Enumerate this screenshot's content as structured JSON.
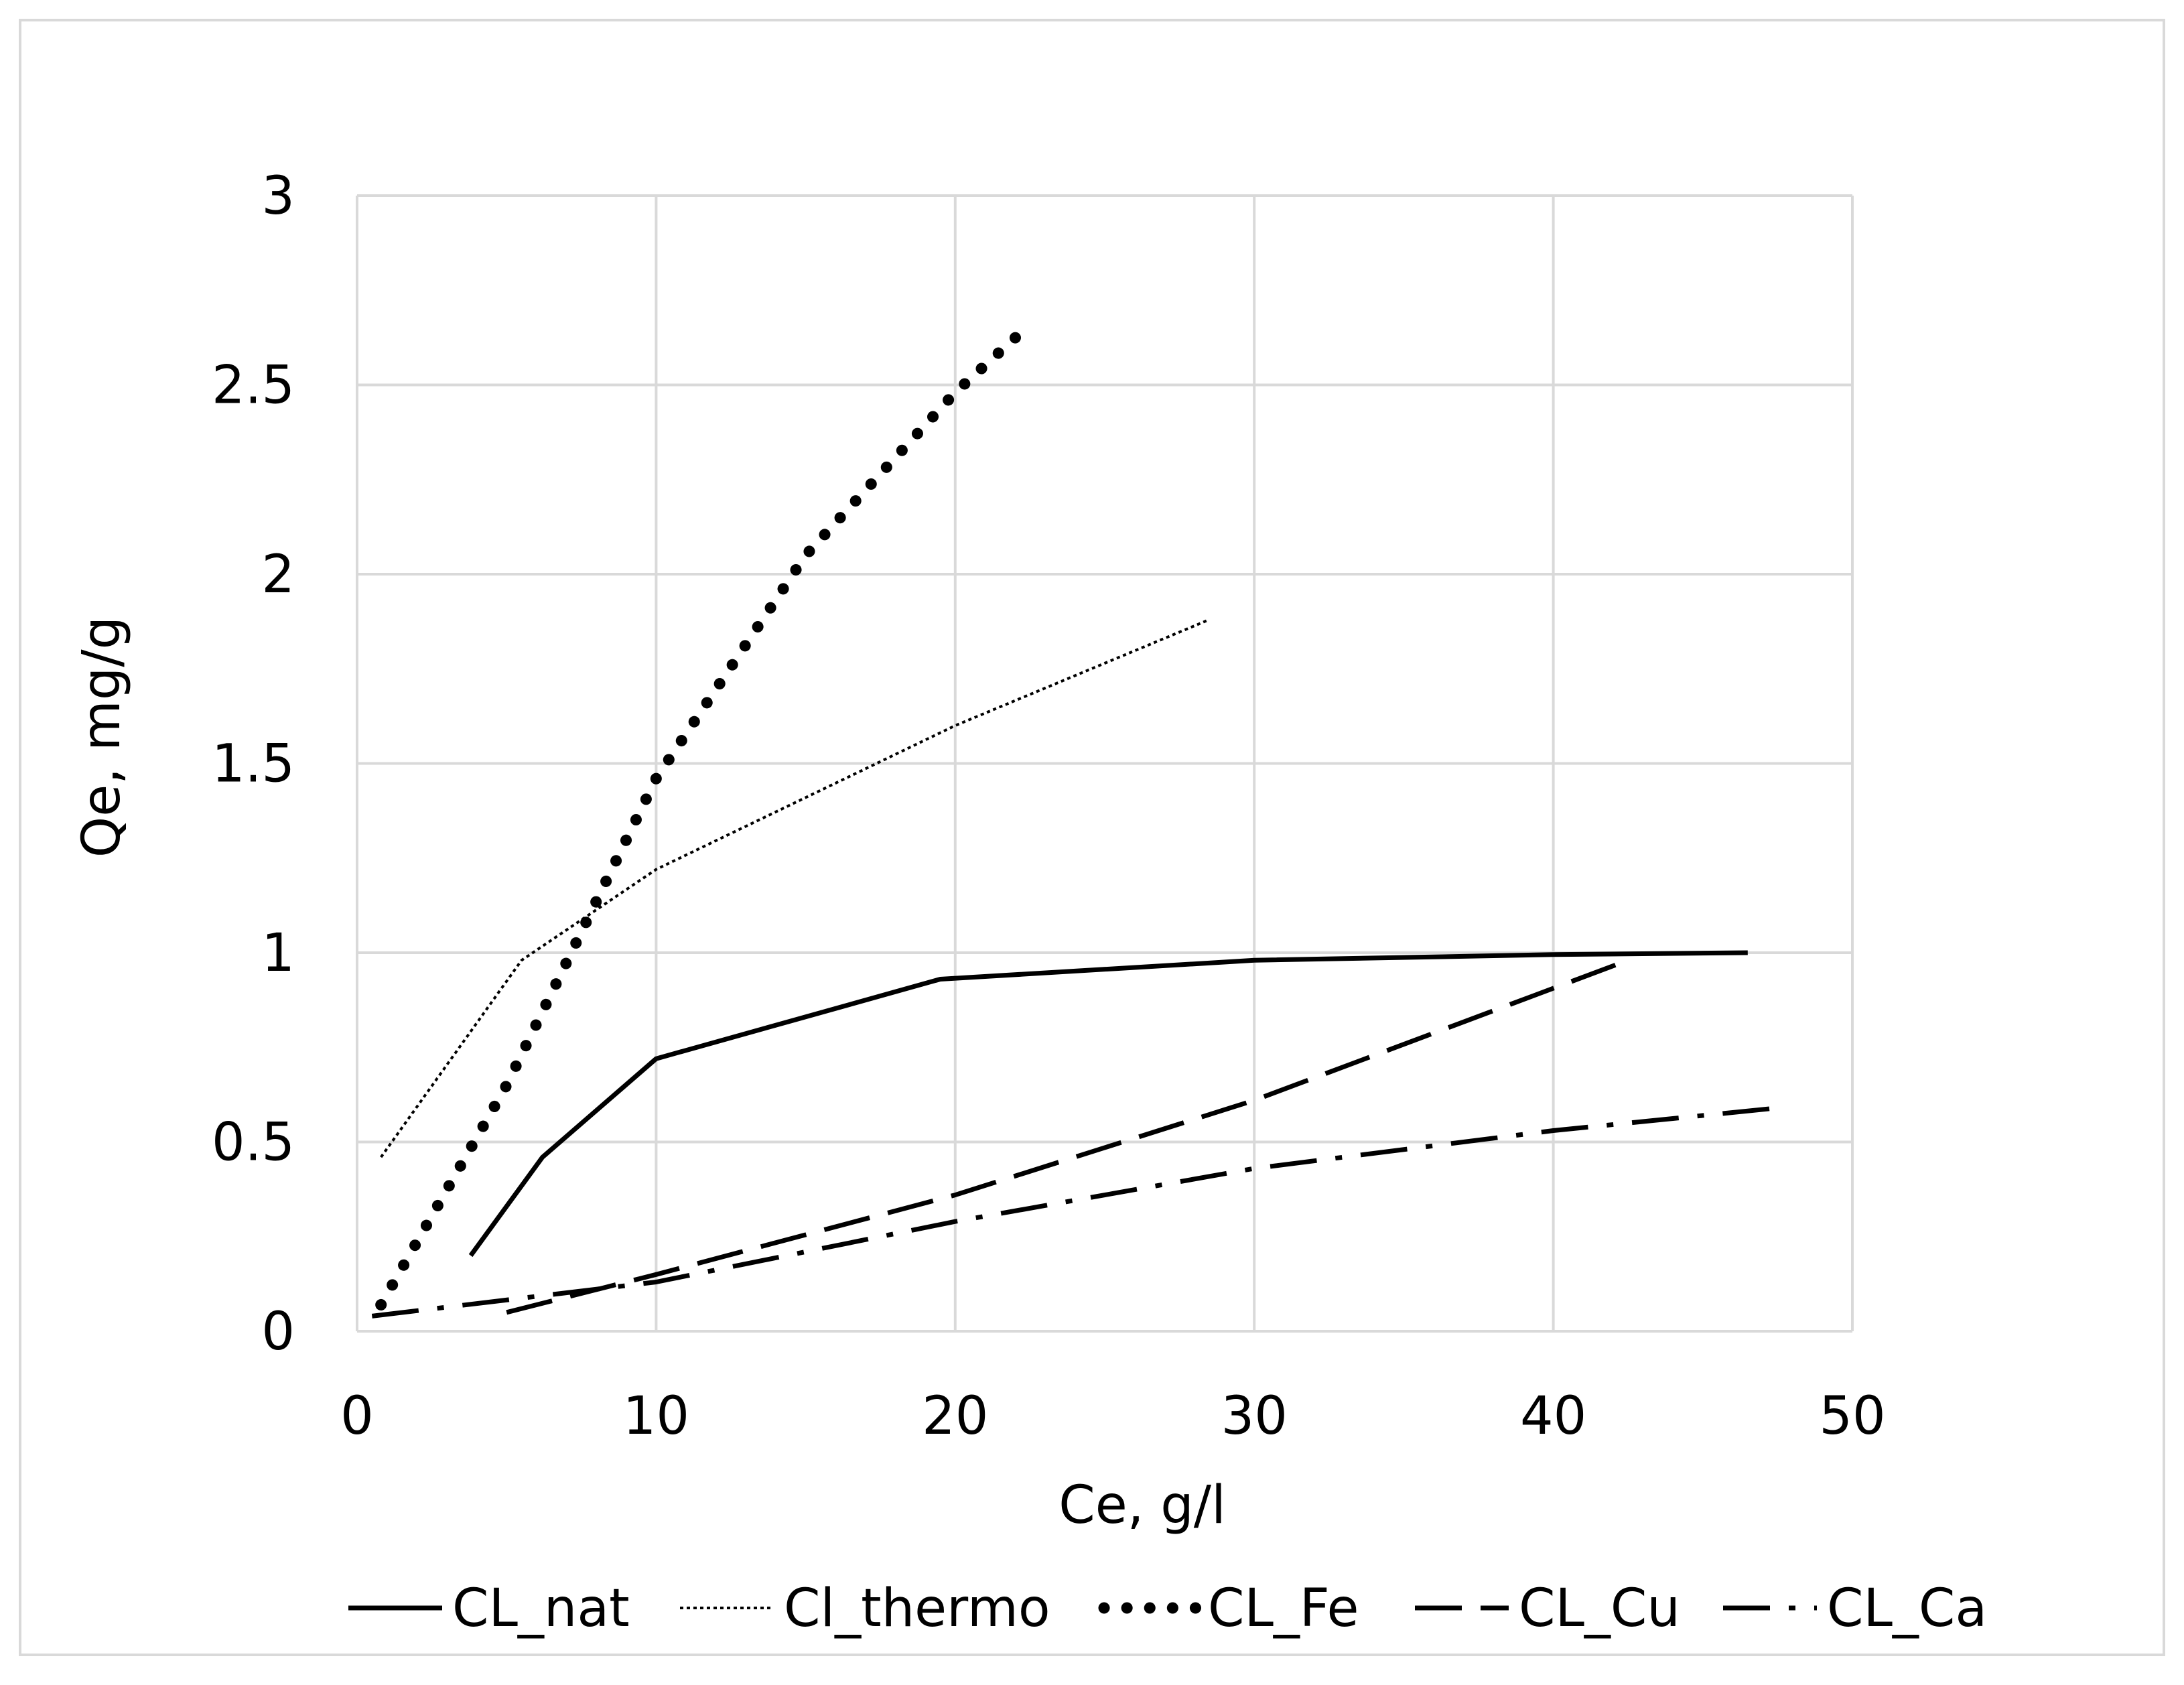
{
  "chart_data": {
    "type": "line",
    "title": "",
    "xlabel": "Ce, g/l",
    "ylabel": "Qe, mg/g",
    "xlim": [
      0,
      50
    ],
    "ylim": [
      0,
      3
    ],
    "xticks": [
      0,
      10,
      20,
      30,
      40,
      50
    ],
    "yticks": [
      0,
      0.5,
      1,
      1.5,
      2,
      2.5,
      3
    ],
    "xtick_labels": [
      "0",
      "10",
      "20",
      "30",
      "40",
      "50"
    ],
    "ytick_labels": [
      "0",
      "0.5",
      "1",
      "1.5",
      "2",
      "2.5",
      "3"
    ],
    "grid": true,
    "legend_position": "bottom",
    "series": [
      {
        "name": "CL_nat",
        "style": "solid",
        "x": [
          3.8,
          6.2,
          10,
          19.5,
          30,
          40,
          46.5
        ],
        "y": [
          0.2,
          0.46,
          0.72,
          0.93,
          0.98,
          0.995,
          1.0
        ]
      },
      {
        "name": "Cl_thermo",
        "style": "dotted",
        "x": [
          0.8,
          5.5,
          10,
          20,
          28.5
        ],
        "y": [
          0.46,
          0.98,
          1.22,
          1.6,
          1.88
        ]
      },
      {
        "name": "CL_Fe",
        "style": "round-dots",
        "x": [
          0.8,
          5,
          10,
          15,
          20,
          22.5
        ],
        "y": [
          0.07,
          0.65,
          1.46,
          2.05,
          2.48,
          2.66
        ]
      },
      {
        "name": "CL_Cu",
        "style": "dash",
        "x": [
          5,
          10,
          20,
          30,
          42.5
        ],
        "y": [
          0.05,
          0.15,
          0.36,
          0.61,
          0.98
        ]
      },
      {
        "name": "CL_Ca",
        "style": "dash-dot",
        "x": [
          0.5,
          10,
          20,
          30,
          40,
          47.5
        ],
        "y": [
          0.04,
          0.13,
          0.29,
          0.43,
          0.53,
          0.59
        ]
      }
    ]
  }
}
